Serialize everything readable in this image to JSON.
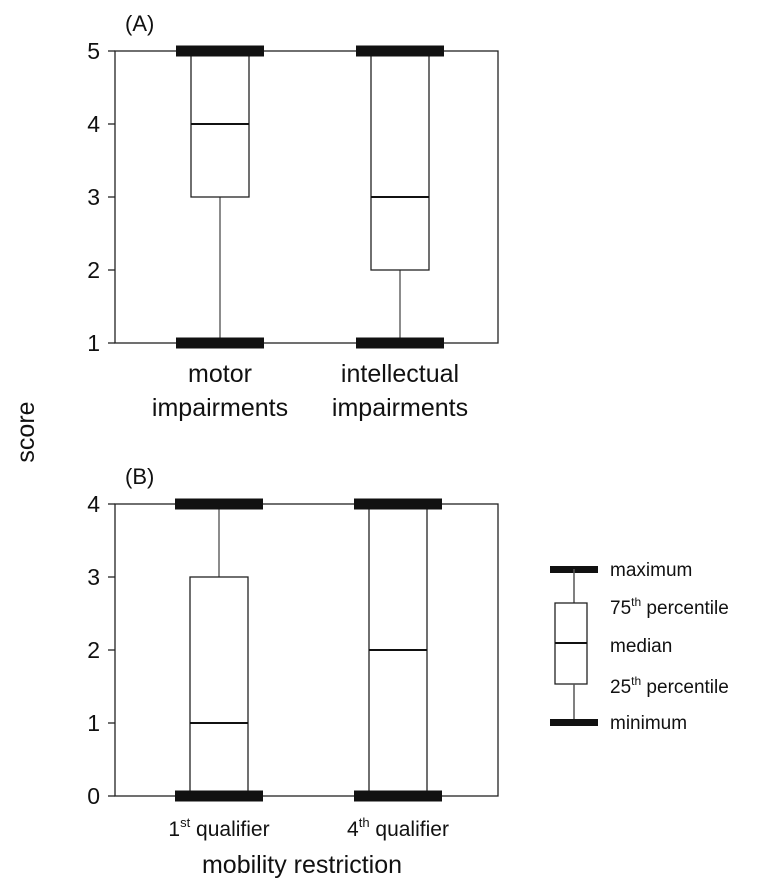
{
  "figure": {
    "shared_ylabel": "score",
    "legend": {
      "maximum": "maximum",
      "p75": "75",
      "p75_suffix": "th",
      "p75_rest": " percentile",
      "median": "median",
      "p25": "25",
      "p25_suffix": "th",
      "p25_rest": " percentile",
      "minimum": "minimum"
    }
  },
  "chart_data": [
    {
      "type": "boxplot",
      "panel_label": "(A)",
      "ylim": [
        1,
        5
      ],
      "yticks": [
        "1",
        "2",
        "3",
        "4",
        "5"
      ],
      "xlabel": "",
      "categories": [
        {
          "lines": [
            "motor",
            "impairments"
          ],
          "min": 1,
          "q1": 3,
          "median": 4,
          "q3": 5,
          "max": 5
        },
        {
          "lines": [
            "intellectual",
            "impairments"
          ],
          "min": 1,
          "q1": 2,
          "median": 3,
          "q3": 5,
          "max": 5
        }
      ]
    },
    {
      "type": "boxplot",
      "panel_label": "(B)",
      "ylim": [
        0,
        4
      ],
      "yticks": [
        "0",
        "1",
        "2",
        "3",
        "4"
      ],
      "xlabel": "mobility restriction",
      "categories": [
        {
          "base": "1",
          "sup": "st",
          "rest": " qualifier",
          "min": 0,
          "q1": 0,
          "median": 1,
          "q3": 3,
          "max": 4
        },
        {
          "base": "4",
          "sup": "th",
          "rest": " qualifier",
          "min": 0,
          "q1": 0,
          "median": 2,
          "q3": 4,
          "max": 4
        }
      ]
    }
  ]
}
